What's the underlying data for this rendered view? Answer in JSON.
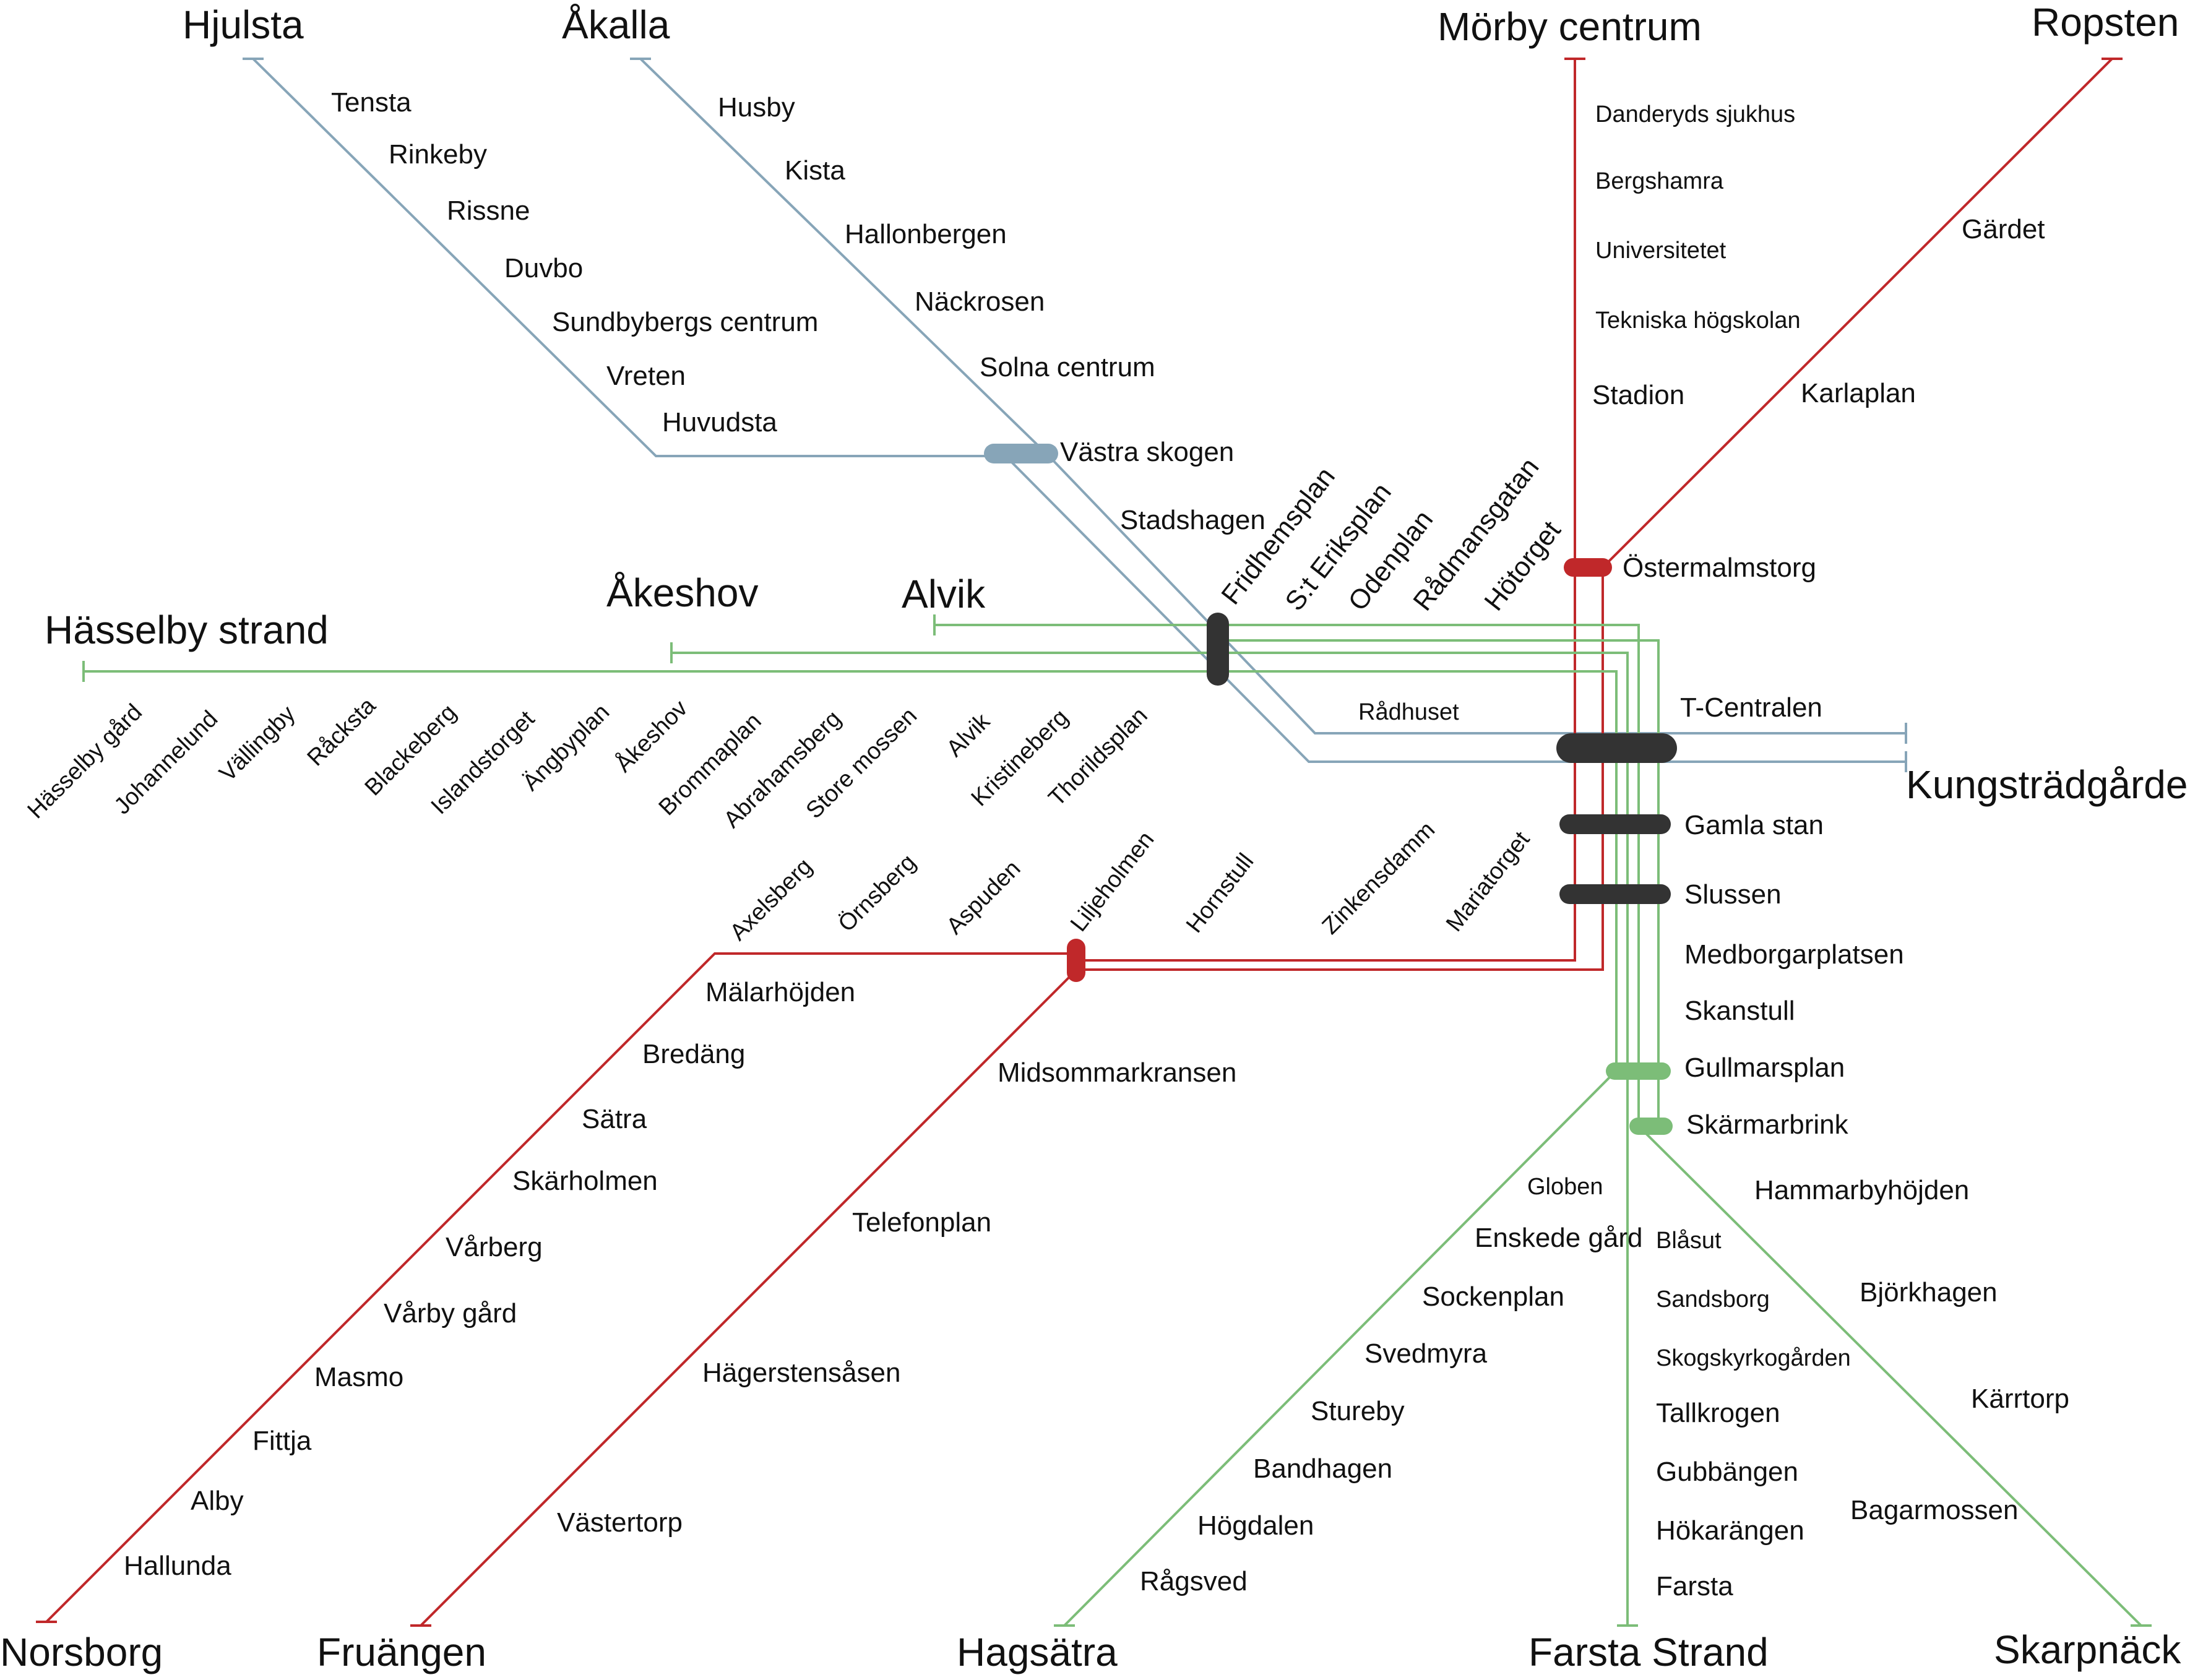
{
  "colors": {
    "blue": "#87a5b8",
    "red": "#c0282a",
    "green": "#7cbd78",
    "interchange": "#333333",
    "background": "#ffffff",
    "text": "#111111"
  },
  "termini": {
    "hjulsta": "Hjulsta",
    "akalla": "Åkalla",
    "morby": "Mörby centrum",
    "ropsten": "Ropsten",
    "hasselby_strand": "Hässelby strand",
    "akeshov": "Åkeshov",
    "alvik": "Alvik",
    "kungstradgarden": "Kungsträdgården",
    "norsborg": "Norsborg",
    "fruangen": "Fruängen",
    "hagsatra": "Hagsätra",
    "farsta_strand": "Farsta Strand",
    "skarpnack": "Skarpnäck"
  },
  "stations": {
    "tensta": "Tensta",
    "rinkeby": "Rinkeby",
    "rissne": "Rissne",
    "duvbo": "Duvbo",
    "sundbyberg": "Sundbybergs centrum",
    "vreten": "Vreten",
    "huvudsta": "Huvudsta",
    "husby": "Husby",
    "kista": "Kista",
    "hallonbergen": "Hallonbergen",
    "nackrosen": "Näckrosen",
    "solna_centrum": "Solna centrum",
    "vastra_skogen": "Västra skogen",
    "stadshagen": "Stadshagen",
    "danderyd": "Danderyds sjukhus",
    "bergshamra": "Bergshamra",
    "universitetet": "Universitetet",
    "tekniska": "Tekniska högskolan",
    "stadion": "Stadion",
    "gardet": "Gärdet",
    "karlaplan": "Karlaplan",
    "ostermalmstorg": "Östermalmstorg",
    "fridhemsplan": "Fridhemsplan",
    "st_eriksplan": "S:t Eriksplan",
    "odenplan": "Odenplan",
    "radmansgatan": "Rådmansgatan",
    "hotorget": "Hötorget",
    "radhuset": "Rådhuset",
    "t_centralen": "T-Centralen",
    "hasselby_gard": "Hässelby gård",
    "johannelund": "Johannelund",
    "vallingby": "Vällingby",
    "racksta": "Råcksta",
    "blackeberg": "Blackeberg",
    "islandstorget": "Islandstorget",
    "angbyplan": "Ängbyplan",
    "akeshov": "Åkeshov",
    "brommaplan": "Brommaplan",
    "abrahamsberg": "Abrahamsberg",
    "stora_mossen": "Store mossen",
    "alvik": "Alvik",
    "kristineberg": "Kristineberg",
    "thorildsplan": "Thorildsplan",
    "gamla_stan": "Gamla stan",
    "slussen": "Slussen",
    "axelsberg": "Axelsberg",
    "ornsberg": "Örnsberg",
    "aspuden": "Aspuden",
    "liljeholmen": "Liljeholmen",
    "hornstull": "Hornstull",
    "zinkensdamm": "Zinkensdamm",
    "mariatorget": "Mariatorget",
    "medborgarplatsen": "Medborgarplatsen",
    "skanstull": "Skanstull",
    "gullmarsplan": "Gullmarsplan",
    "skarmarbrink": "Skärmarbrink",
    "malarhojden": "Mälarhöjden",
    "bredang": "Bredäng",
    "satra": "Sätra",
    "skarholmen": "Skärholmen",
    "varberg": "Vårberg",
    "varby_gard": "Vårby gård",
    "masmo": "Masmo",
    "fittja": "Fittja",
    "alby": "Alby",
    "hallunda": "Hallunda",
    "midsommarkransen": "Midsommarkransen",
    "telefonplan": "Telefonplan",
    "hagerstensasen": "Hägerstensåsen",
    "vastertorp": "Västertorp",
    "globen": "Globen",
    "enskede_gard": "Enskede gård",
    "sockenplan": "Sockenplan",
    "svedmyra": "Svedmyra",
    "stureby": "Stureby",
    "bandhagen": "Bandhagen",
    "hogdalen": "Högdalen",
    "ragsved": "Rågsved",
    "blasut": "Blåsut",
    "sandsborg": "Sandsborg",
    "skogskyrkogarden": "Skogskyrkogården",
    "tallkrogen": "Tallkrogen",
    "gubbangen": "Gubbängen",
    "hokarangen": "Hökarängen",
    "farsta": "Farsta",
    "hammarbyhojden": "Hammarbyhöjden",
    "bjorkhagen": "Björkhagen",
    "karrtorp": "Kärrtorp",
    "bagarmossen": "Bagarmossen"
  }
}
